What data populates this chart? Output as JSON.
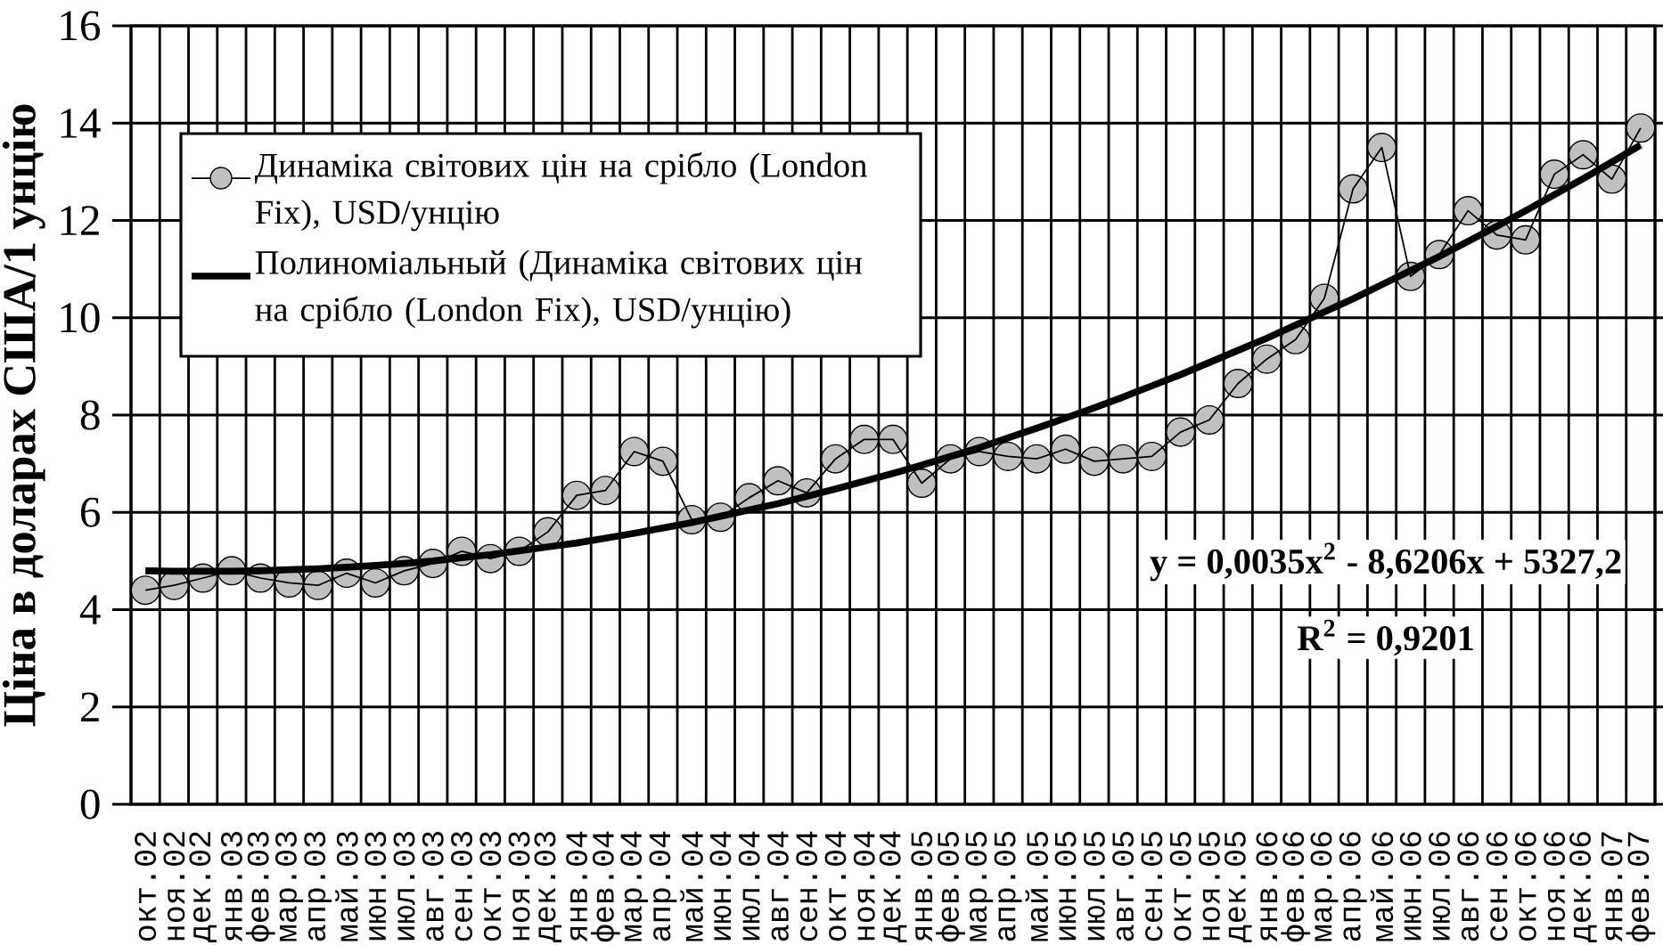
{
  "chart_data": {
    "type": "line",
    "ylabel": "Ціна в доларах США/1 унцію",
    "categories": [
      "окт.02",
      "ноя.02",
      "дек.02",
      "янв.03",
      "фев.03",
      "мар.03",
      "апр.03",
      "май.03",
      "июн.03",
      "июл.03",
      "авг.03",
      "сен.03",
      "окт.03",
      "ноя.03",
      "дек.03",
      "янв.04",
      "фев.04",
      "мар.04",
      "апр.04",
      "май.04",
      "июн.04",
      "июл.04",
      "авг.04",
      "сен.04",
      "окт.04",
      "ноя.04",
      "дек.04",
      "янв.05",
      "фев.05",
      "мар.05",
      "апр.05",
      "май.05",
      "июн.05",
      "июл.05",
      "авг.05",
      "сен.05",
      "окт.05",
      "ноя.05",
      "дек.05",
      "янв.06",
      "фев.06",
      "мар.06",
      "апр.06",
      "май.06",
      "июн.06",
      "июл.06",
      "авг.06",
      "сен.06",
      "окт.06",
      "ноя.06",
      "дек.06",
      "янв.07",
      "фев.07"
    ],
    "series": [
      {
        "name": "Динаміка світових цін на срібло (London Fix), USD/унцію",
        "color": "#c0c0c0",
        "marker": "circle",
        "values": [
          4.4,
          4.5,
          4.65,
          4.8,
          4.65,
          4.55,
          4.5,
          4.75,
          4.55,
          4.8,
          4.95,
          5.2,
          5.05,
          5.2,
          5.6,
          6.35,
          6.45,
          7.25,
          7.05,
          5.85,
          5.9,
          6.3,
          6.65,
          6.4,
          7.1,
          7.5,
          7.5,
          6.6,
          7.1,
          7.25,
          7.15,
          7.1,
          7.3,
          7.05,
          7.1,
          7.15,
          7.65,
          7.9,
          8.65,
          9.15,
          9.55,
          10.4,
          12.65,
          13.5,
          10.85,
          11.3,
          12.2,
          11.7,
          11.6,
          12.95,
          13.35,
          12.85,
          13.9
        ]
      },
      {
        "name": "Полиноміальный (Динаміка світових цін на срібло (London Fix), USD/унцію)",
        "color": "#000000",
        "marker": "none",
        "values": [
          4.8,
          4.79,
          4.79,
          4.79,
          4.8,
          4.82,
          4.84,
          4.87,
          4.91,
          4.95,
          5.0,
          5.07,
          5.13,
          5.21,
          5.29,
          5.37,
          5.47,
          5.57,
          5.68,
          5.79,
          5.92,
          6.05,
          6.18,
          6.33,
          6.48,
          6.64,
          6.8,
          6.97,
          7.15,
          7.33,
          7.53,
          7.73,
          7.94,
          8.15,
          8.37,
          8.6,
          8.83,
          9.08,
          9.33,
          9.58,
          9.85,
          10.12,
          10.39,
          10.68,
          10.97,
          11.26,
          11.57,
          11.88,
          12.2,
          12.53,
          12.86,
          13.2,
          13.55
        ]
      }
    ],
    "ylim": [
      0,
      16
    ],
    "yticks": [
      0,
      2,
      4,
      6,
      8,
      10,
      12,
      14,
      16
    ],
    "grid": true,
    "legend": "top left",
    "annotations": [
      "y = 0,0035x$^{2}$ - 8,6206x + 5327,2",
      "R$^{2}$ = 0,9201"
    ]
  }
}
